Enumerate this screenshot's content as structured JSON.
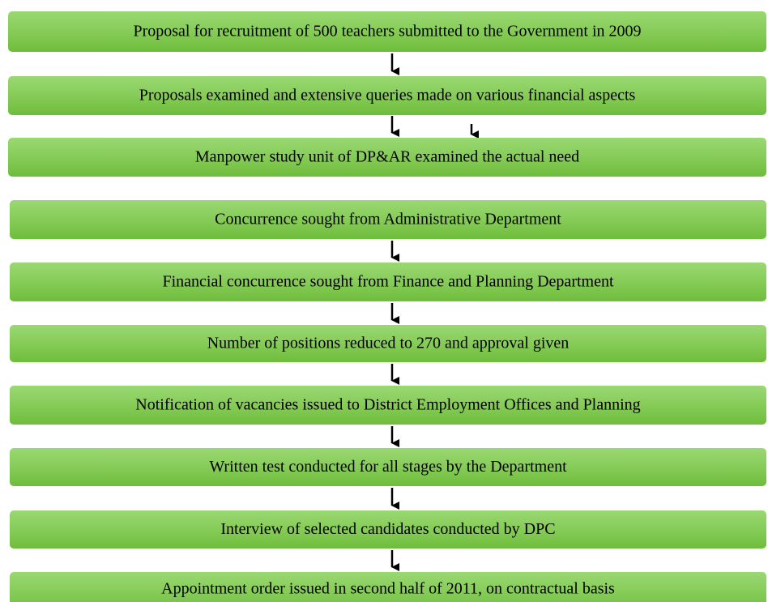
{
  "nodes": [
    {
      "label": "Proposal for recruitment of 500 teachers submitted to the Government in 2009"
    },
    {
      "label": "Proposals examined and extensive queries made on various financial aspects"
    },
    {
      "label": "Manpower study unit of DP&AR examined the actual need"
    },
    {
      "label": "Concurrence sought from Administrative Department"
    },
    {
      "label": "Financial concurrence sought from Finance and Planning Department"
    },
    {
      "label": "Number of positions reduced to 270 and approval given"
    },
    {
      "label": "Notification of vacancies issued to District Employment Offices and Planning"
    },
    {
      "label": "Written test conducted for all stages by the Department"
    },
    {
      "label": "Interview of selected candidates conducted by DPC"
    },
    {
      "label": "Appointment order issued in second half of 2011, on contractual basis"
    }
  ]
}
